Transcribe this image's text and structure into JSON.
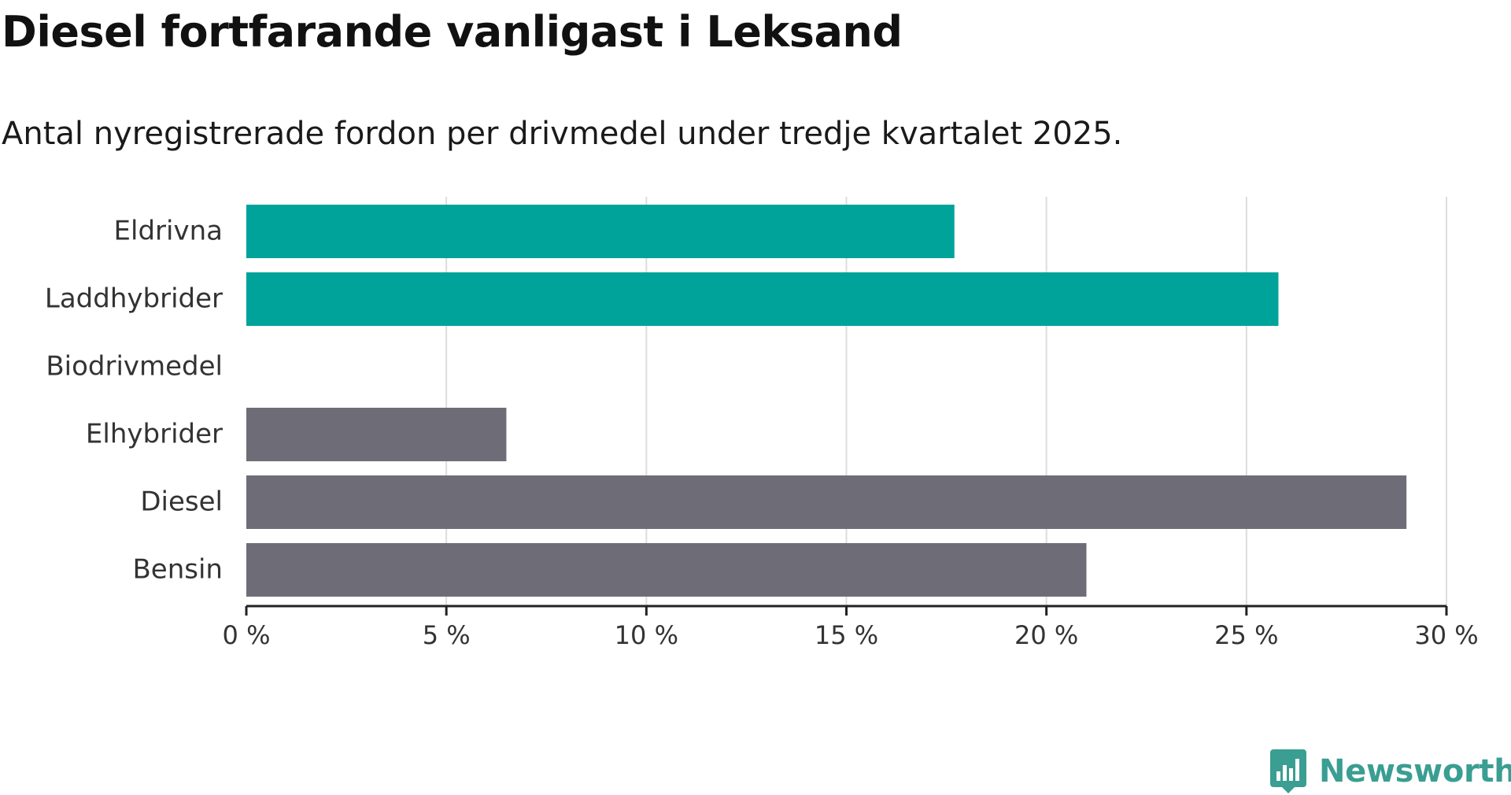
{
  "header": {
    "title": "Diesel fortfarande vanligast i Leksand",
    "subtitle": "Antal nyregistrerade fordon per drivmedel under tredje kvartalet 2025."
  },
  "brand": {
    "name": "Newsworthy",
    "color": "#3a9e92"
  },
  "chart_data": {
    "type": "bar",
    "orientation": "horizontal",
    "title": "Diesel fortfarande vanligast i Leksand",
    "subtitle": "Antal nyregistrerade fordon per drivmedel under tredje kvartalet 2025.",
    "xlabel": "",
    "ylabel": "",
    "categories": [
      "Eldrivna",
      "Laddhybrider",
      "Biodrivmedel",
      "Elhybrider",
      "Diesel",
      "Bensin"
    ],
    "values": [
      17.7,
      25.8,
      0,
      6.5,
      29.0,
      21.0
    ],
    "bar_colors": [
      "#00a39a",
      "#00a39a",
      "#00a39a",
      "#6e6d77",
      "#6e6d77",
      "#6e6d77"
    ],
    "xlim": [
      0,
      30
    ],
    "xticks": [
      0,
      5,
      10,
      15,
      20,
      25,
      30
    ],
    "xtick_labels": [
      "0 %",
      "5 %",
      "10 %",
      "15 %",
      "20 %",
      "25 %",
      "30 %"
    ],
    "grid": true,
    "legend": "none"
  }
}
